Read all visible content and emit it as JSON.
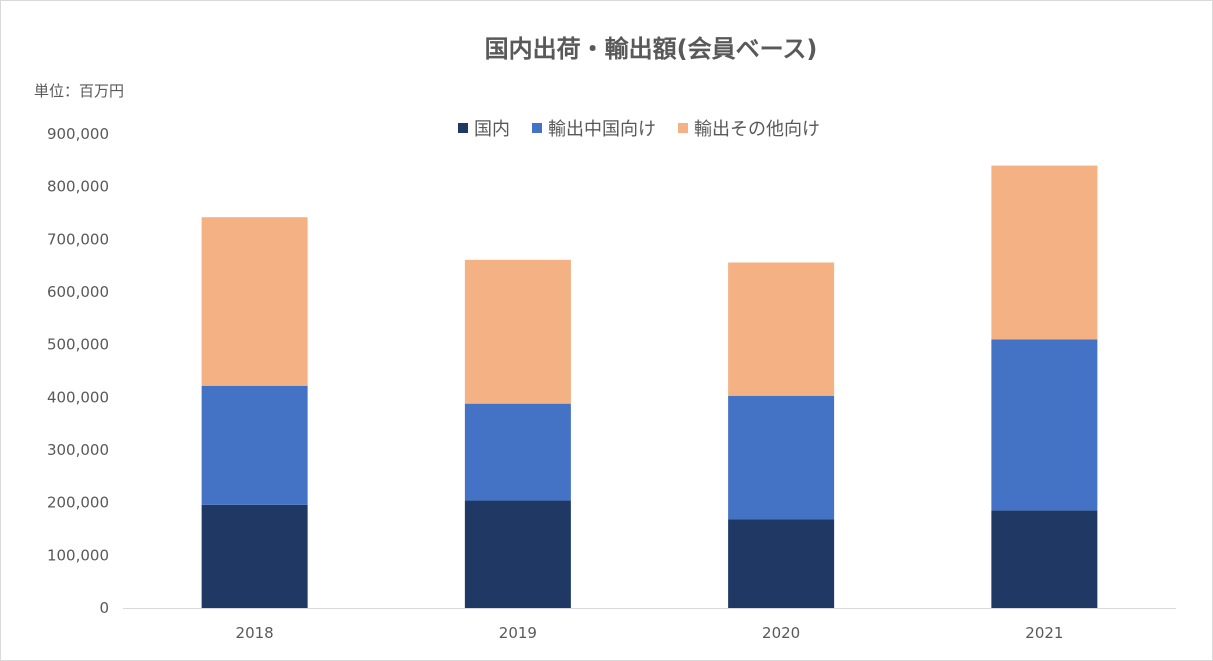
{
  "chart_data": {
    "type": "bar",
    "stacked": true,
    "title": "国内出荷・輸出額(会員ベース)",
    "unit_label": "単位：百万円",
    "categories": [
      "2018",
      "2019",
      "2020",
      "2021"
    ],
    "series": [
      {
        "name": "国内",
        "color": "#1f3864",
        "values": [
          196000,
          204000,
          168000,
          185000
        ]
      },
      {
        "name": "輸出中国向け",
        "color": "#4472c4",
        "values": [
          226000,
          184000,
          235000,
          325000
        ]
      },
      {
        "name": "輸出その他向け",
        "color": "#f4b183",
        "values": [
          320000,
          273000,
          253000,
          330000
        ]
      }
    ],
    "ylim": [
      0,
      900000
    ],
    "yticks": [
      "0",
      "100,000",
      "200,000",
      "300,000",
      "400,000",
      "500,000",
      "600,000",
      "700,000",
      "800,000",
      "900,000"
    ],
    "grid": false,
    "legend_position": "top"
  }
}
